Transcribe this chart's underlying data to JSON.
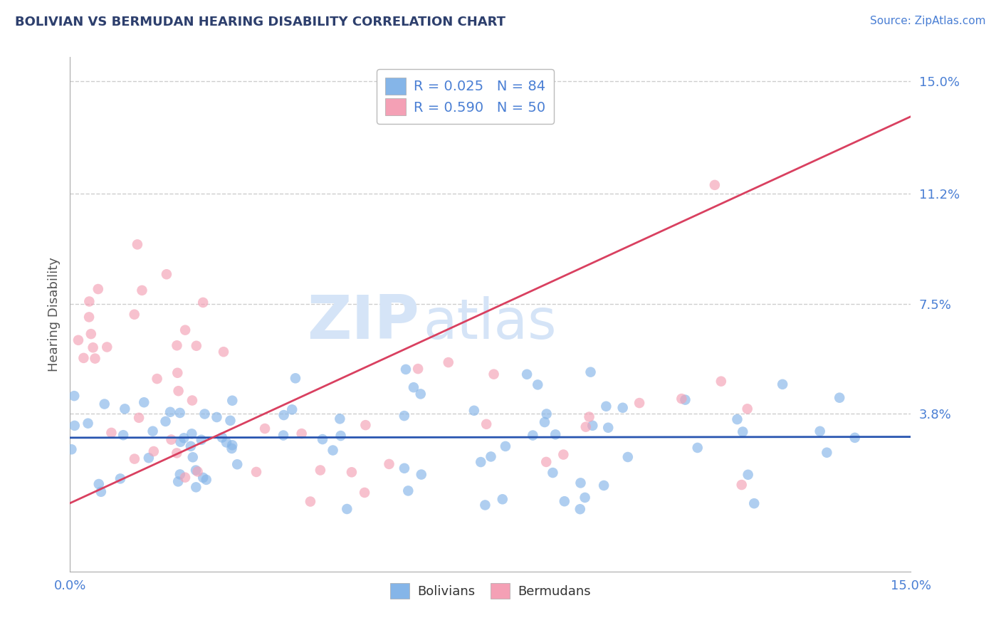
{
  "title": "BOLIVIAN VS BERMUDAN HEARING DISABILITY CORRELATION CHART",
  "source_text": "Source: ZipAtlas.com",
  "ylabel": "Hearing Disability",
  "xmin": 0.0,
  "xmax": 0.15,
  "ymin": -0.015,
  "ymax": 0.158,
  "yticks_pos": [
    0.0,
    0.038,
    0.075,
    0.112,
    0.15
  ],
  "ytick_labels": [
    "",
    "3.8%",
    "7.5%",
    "11.2%",
    "15.0%"
  ],
  "xticks_pos": [
    0.0,
    0.15
  ],
  "xtick_labels": [
    "0.0%",
    "15.0%"
  ],
  "title_color": "#2d3f6d",
  "axis_label_color": "#4a7fd4",
  "legend_text_color": "#4a7fd4",
  "bolivians_dot_color": "#85b5e8",
  "bermudans_dot_color": "#f4a0b5",
  "blue_line_color": "#2855b0",
  "pink_line_color": "#d94060",
  "grid_color": "#c8c8c8",
  "watermark_color": "#d5e4f7",
  "spine_color": "#aaaaaa",
  "legend_R_bol": "R = 0.025",
  "legend_N_bol": "N = 84",
  "legend_R_ber": "R = 0.590",
  "legend_N_ber": "N = 50",
  "blue_line_y_at_0": 0.03,
  "blue_line_slope": 0.002,
  "pink_line_y_at_0": 0.008,
  "pink_line_slope": 0.867
}
